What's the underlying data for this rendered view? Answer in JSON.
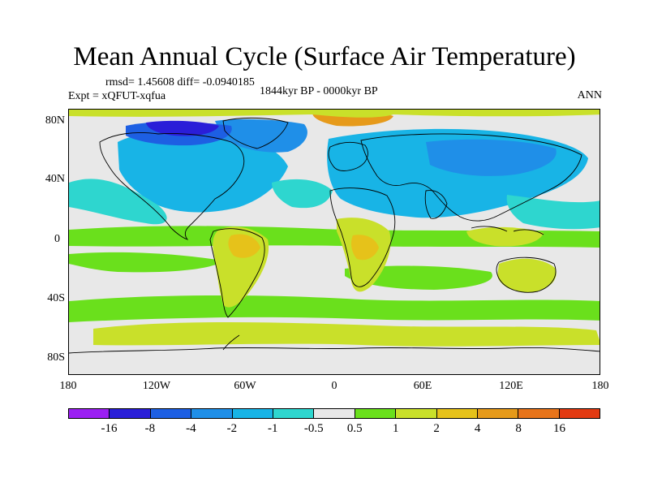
{
  "title": "Mean Annual Cycle (Surface Air Temperature)",
  "stats": "rmsd= 1.45608 diff= -0.0940185",
  "experiment": "Expt = xQFUT-xqfua",
  "period": "1844kyr BP - 0000kyr BP",
  "season": "ANN",
  "y_axis_labels": [
    "80N",
    "40N",
    "0",
    "40S",
    "80S"
  ],
  "x_axis_labels": [
    "180",
    "120W",
    "60W",
    "0",
    "60E",
    "120E",
    "180"
  ],
  "colorbar": {
    "labels": [
      "-16",
      "-8",
      "-4",
      "-2",
      "-1",
      "-0.5",
      "0.5",
      "1",
      "2",
      "4",
      "8",
      "16"
    ],
    "colors": [
      "#9b1ff2",
      "#2a1ed8",
      "#1d5fe3",
      "#1f8fe8",
      "#18b4e6",
      "#2ed6cf",
      "#e8e8e8",
      "#6ae01c",
      "#c9e02a",
      "#e6c21a",
      "#e69a1a",
      "#e8741a",
      "#e23a12"
    ]
  },
  "palette": {
    "ocean_neutral": "#e8e8e8",
    "cold_1": "#2ed6cf",
    "cold_2": "#18b4e6",
    "cold_3": "#1f8fe8",
    "cold_4": "#1d5fe3",
    "cold_5": "#2a1ed8",
    "warm_1": "#6ae01c",
    "warm_2": "#c9e02a",
    "warm_3": "#e6c21a",
    "warm_4": "#e69a1a"
  }
}
